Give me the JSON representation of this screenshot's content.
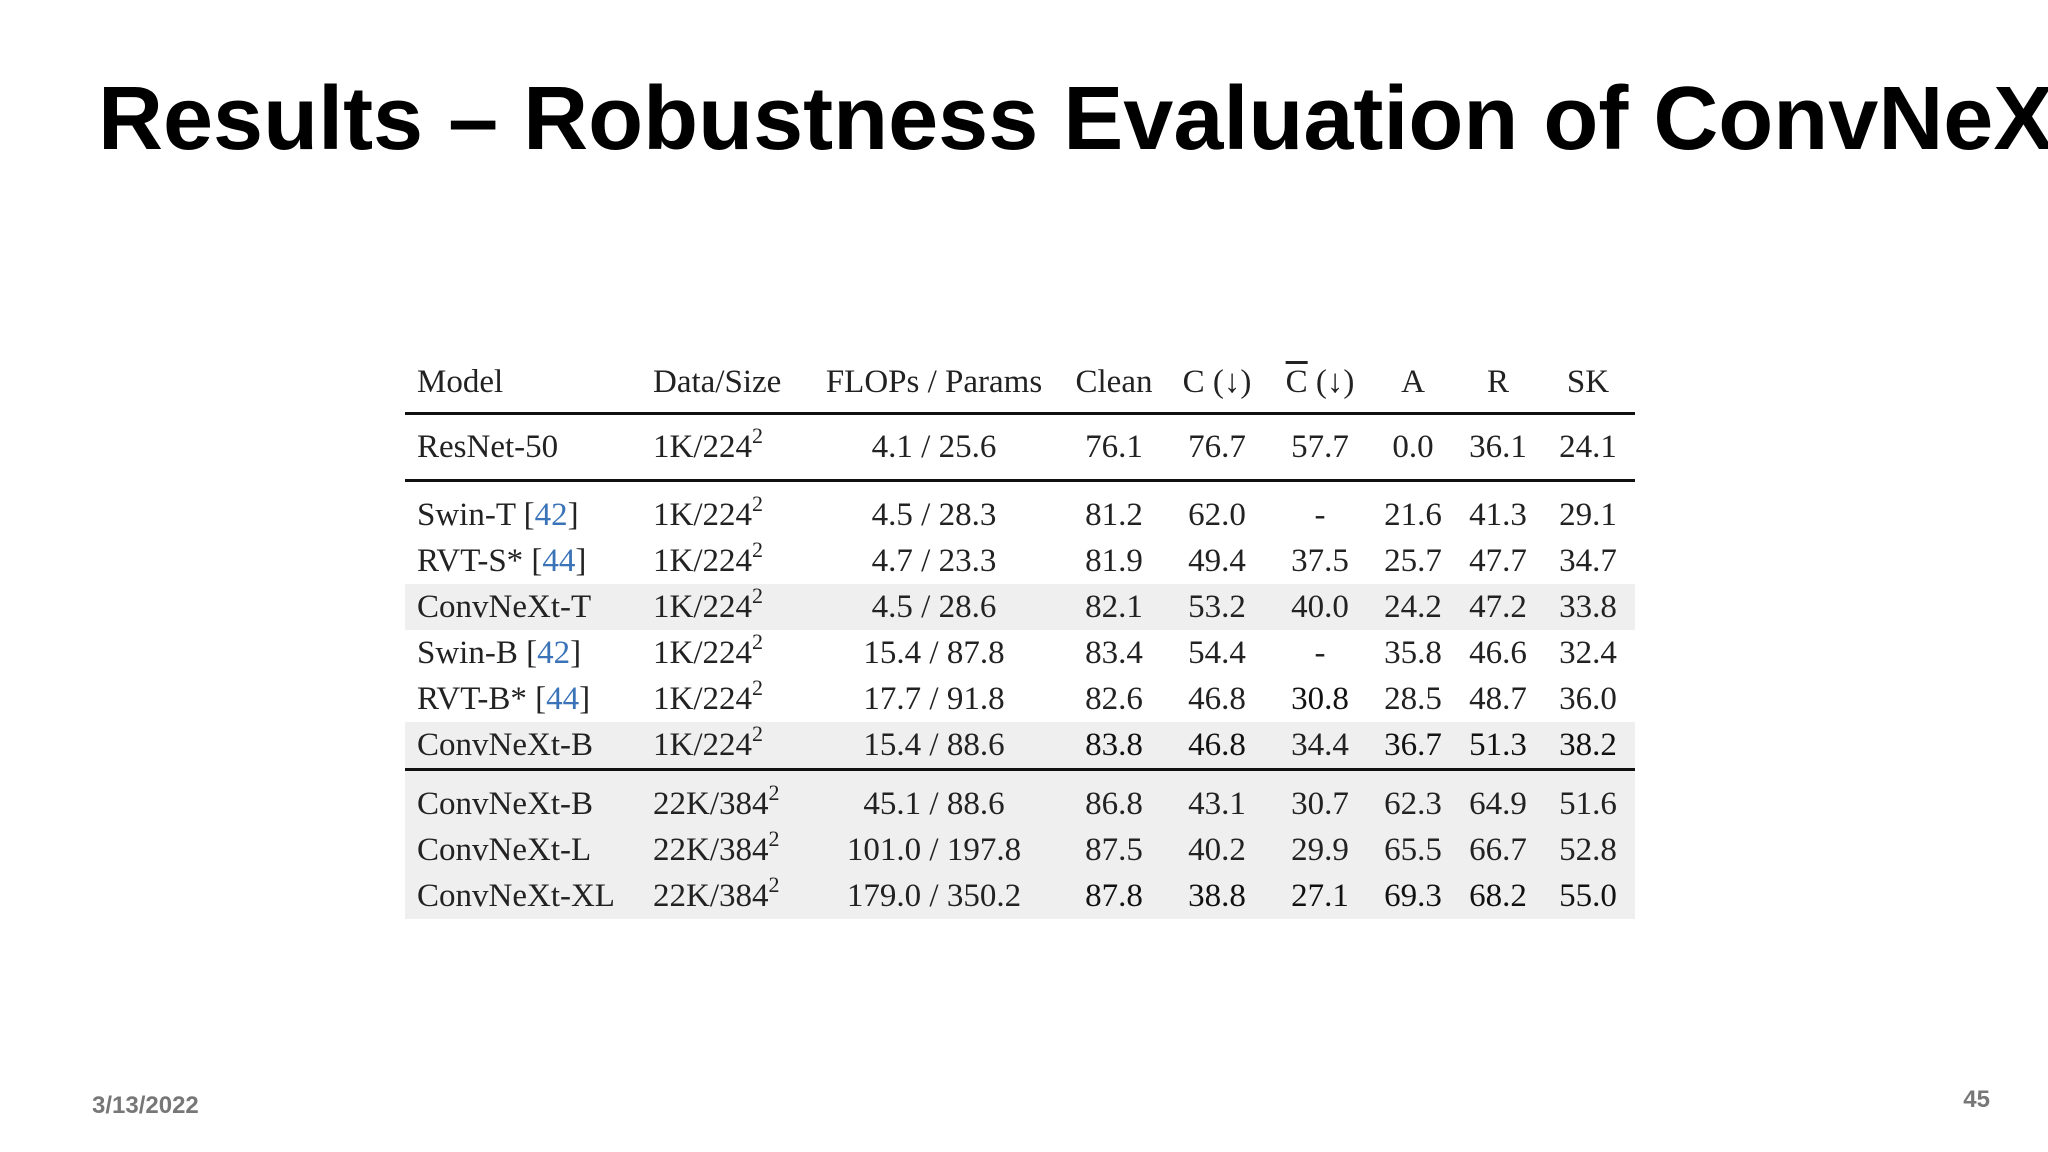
{
  "slide": {
    "title": "Results – Robustness Evaluation of ConvNeXt",
    "date": "3/13/2022",
    "page_number": "45"
  },
  "table": {
    "headers": {
      "model": "Model",
      "data_size": "Data/Size",
      "flops_params": "FLOPs / Params",
      "clean": "Clean",
      "c": "C (↓)",
      "c_bar_letter": "C",
      "c_bar_arrow": " (↓)",
      "a": "A",
      "r": "R",
      "sk": "SK"
    },
    "rows": [
      {
        "model": "ResNet-50",
        "cite": "",
        "cite_suffix": "",
        "data": "1K/224",
        "exp": "2",
        "flops": "4.1 / 25.6",
        "clean": "76.1",
        "c": "76.7",
        "cbar": "57.7",
        "a": "0.0",
        "r": "36.1",
        "sk": "24.1"
      },
      {
        "model": "Swin-T ",
        "cite": "42",
        "cite_suffix": "",
        "data": "1K/224",
        "exp": "2",
        "flops": "4.5 / 28.3",
        "clean": "81.2",
        "c": "62.0",
        "cbar": "-",
        "a": "21.6",
        "r": "41.3",
        "sk": "29.1"
      },
      {
        "model": "RVT-S* ",
        "cite": "44",
        "cite_suffix": "",
        "data": "1K/224",
        "exp": "2",
        "flops": "4.7 / 23.3",
        "clean": "81.9",
        "c": "49.4",
        "cbar": "37.5",
        "a": "25.7",
        "r": "47.7",
        "sk": "34.7"
      },
      {
        "model": "ConvNeXt-T",
        "cite": "",
        "cite_suffix": "",
        "data": "1K/224",
        "exp": "2",
        "flops": "4.5 / 28.6",
        "clean": "82.1",
        "c": "53.2",
        "cbar": "40.0",
        "a": "24.2",
        "r": "47.2",
        "sk": "33.8"
      },
      {
        "model": "Swin-B ",
        "cite": "42",
        "cite_suffix": "",
        "data": "1K/224",
        "exp": "2",
        "flops": "15.4 / 87.8",
        "clean": "83.4",
        "c": "54.4",
        "cbar": "-",
        "a": "35.8",
        "r": "46.6",
        "sk": "32.4"
      },
      {
        "model": "RVT-B* ",
        "cite": "44",
        "cite_suffix": "",
        "data": "1K/224",
        "exp": "2",
        "flops": "17.7 / 91.8",
        "clean": "82.6",
        "c": "46.8",
        "cbar": "30.8",
        "a": "28.5",
        "r": "48.7",
        "sk": "36.0"
      },
      {
        "model": "ConvNeXt-B",
        "cite": "",
        "cite_suffix": "",
        "data": "1K/224",
        "exp": "2",
        "flops": "15.4 / 88.6",
        "clean": "83.8",
        "c": "46.8",
        "cbar": "34.4",
        "a": "36.7",
        "r": "51.3",
        "sk": "38.2"
      },
      {
        "model": "ConvNeXt-B",
        "cite": "",
        "cite_suffix": "",
        "data": "22K/384",
        "exp": "2",
        "flops": "45.1 / 88.6",
        "clean": "86.8",
        "c": "43.1",
        "cbar": "30.7",
        "a": "62.3",
        "r": "64.9",
        "sk": "51.6"
      },
      {
        "model": "ConvNeXt-L",
        "cite": "",
        "cite_suffix": "",
        "data": "22K/384",
        "exp": "2",
        "flops": "101.0 / 197.8",
        "clean": "87.5",
        "c": "40.2",
        "cbar": "29.9",
        "a": "65.5",
        "r": "66.7",
        "sk": "52.8"
      },
      {
        "model": "ConvNeXt-XL",
        "cite": "",
        "cite_suffix": "",
        "data": "22K/384",
        "exp": "2",
        "flops": "179.0 / 350.2",
        "clean": "87.8",
        "c": "38.8",
        "cbar": "27.1",
        "a": "69.3",
        "r": "68.2",
        "sk": "55.0"
      }
    ],
    "bracket_open": "[",
    "bracket_close": "]"
  }
}
